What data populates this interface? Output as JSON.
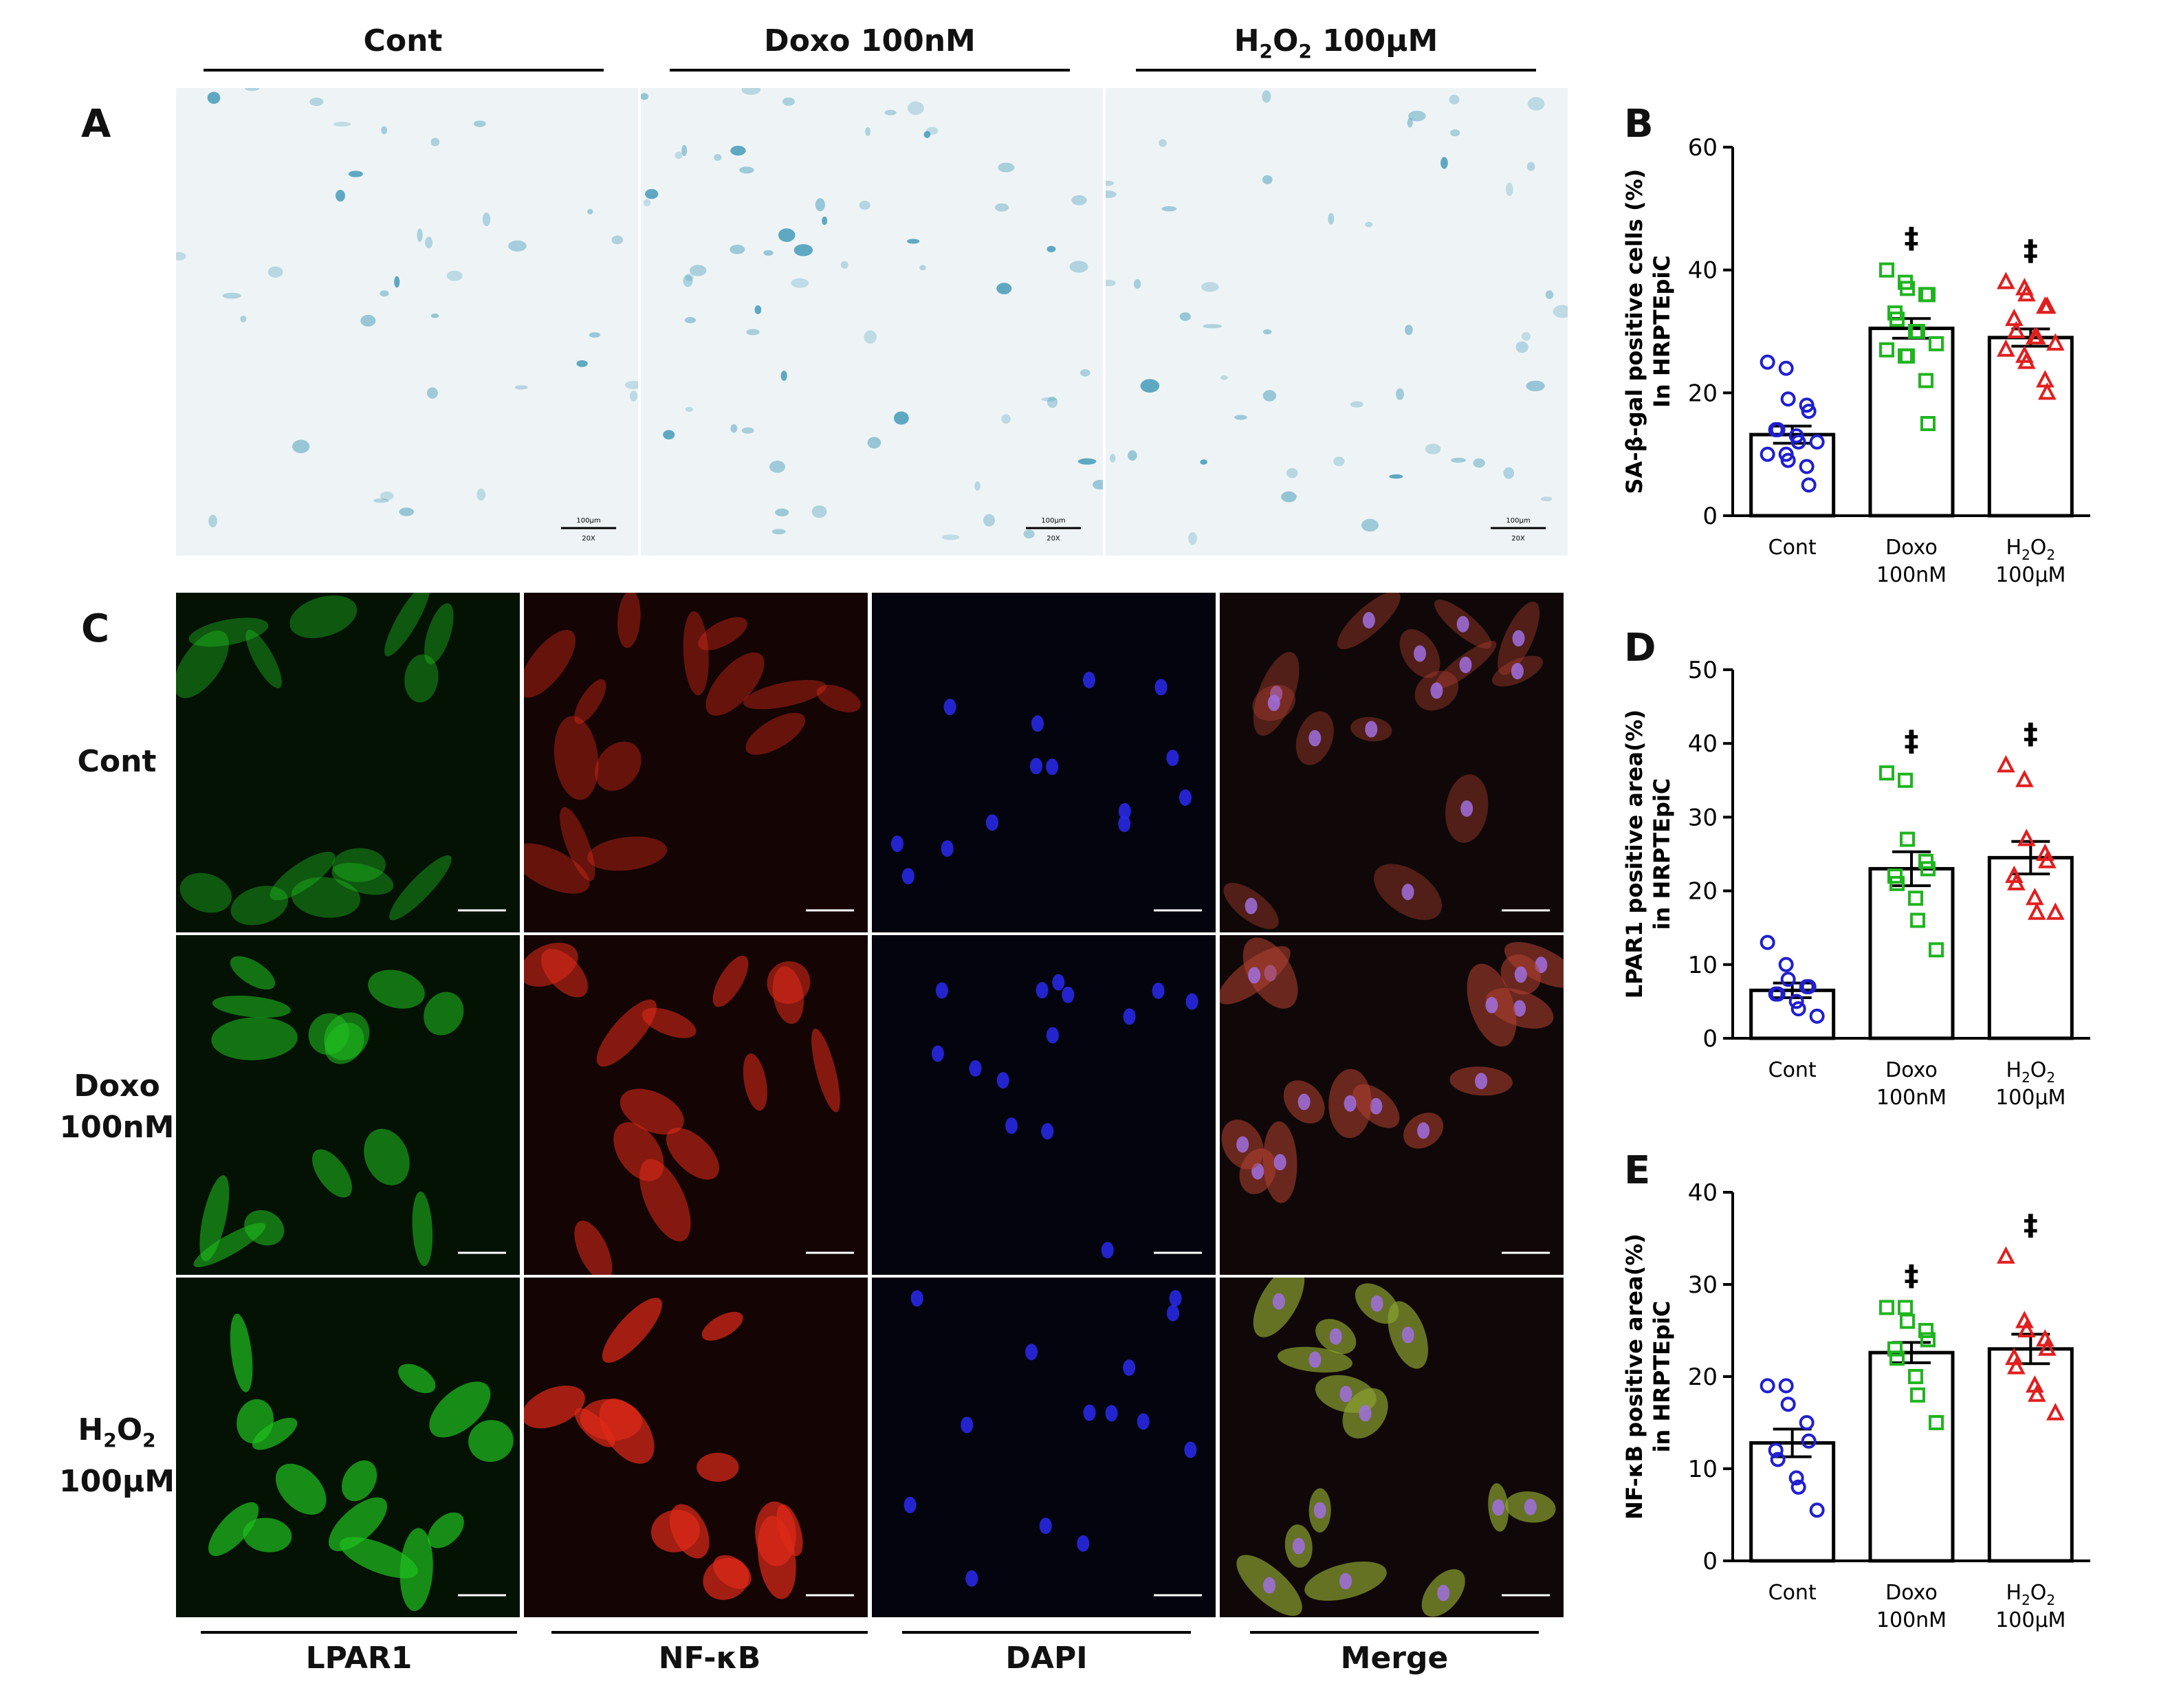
{
  "figure": {
    "panel_letters": {
      "A": "A",
      "B": "B",
      "C": "C",
      "D": "D",
      "E": "E"
    },
    "conditions": {
      "cont": "Cont",
      "doxo": "Doxo 100nM",
      "doxo_line1": "Doxo",
      "doxo_line2": "100nM",
      "h2o2_base": "H",
      "h2o2_sub": "2",
      "h2o2_mid": "O",
      "h2o2_sub2": "2",
      "h2o2_conc": "100μM"
    },
    "panel_A": {
      "scale_bar_label": "100μm",
      "magnification": "20X",
      "image_colors": {
        "background": "#eef4f6",
        "stain": "#2f8fb0"
      }
    },
    "panel_C": {
      "channels": [
        "LPAR1",
        "NF-κB",
        "DAPI",
        "Merge"
      ],
      "channel_colors": {
        "LPAR1": "#2fbf2f",
        "NF-κB": "#e02a18",
        "DAPI": "#2020e0",
        "Merge": "#8a5050"
      }
    },
    "significance_symbol": "‡"
  },
  "chart_data": [
    {
      "panel": "B",
      "type": "bar",
      "ylabel_line1": "SA-β-gal positive cells (%)",
      "ylabel_line2": "In HRPTEpiC",
      "ylim": [
        0,
        60
      ],
      "yticks": [
        0,
        20,
        40,
        60
      ],
      "categories": [
        "Cont",
        "Doxo 100nM",
        "H2O2 100μM"
      ],
      "means": [
        13.2,
        30.5,
        29.0
      ],
      "sem": [
        1.4,
        1.6,
        1.4
      ],
      "points": [
        [
          25,
          24,
          19,
          18,
          17,
          14,
          14,
          13,
          12,
          12,
          10,
          10,
          9,
          8,
          5
        ],
        [
          40,
          38,
          37,
          36,
          36,
          33,
          32,
          30,
          30,
          28,
          27,
          26,
          26,
          22,
          15
        ],
        [
          38,
          37,
          36,
          34,
          34,
          32,
          30,
          29,
          29,
          28,
          27,
          26,
          25,
          22,
          20
        ]
      ],
      "significant": [
        false,
        true,
        true
      ],
      "colors": [
        "#1f1fd0",
        "#1fb51f",
        "#e01f1f"
      ],
      "markers": [
        "circle",
        "square",
        "triangle"
      ]
    },
    {
      "panel": "D",
      "type": "bar",
      "ylabel_line1": "LPAR1 positive area(%)",
      "ylabel_line2": "in HRPTEpiC",
      "ylim": [
        0,
        50
      ],
      "yticks": [
        0,
        10,
        20,
        30,
        40,
        50
      ],
      "categories": [
        "Cont",
        "Doxo 100nM",
        "H2O2 100μM"
      ],
      "means": [
        6.5,
        23.0,
        24.5
      ],
      "sem": [
        1.0,
        2.3,
        2.2
      ],
      "points": [
        [
          13,
          10,
          8,
          7,
          7,
          6,
          6,
          5,
          4,
          3
        ],
        [
          36,
          35,
          27,
          24,
          23,
          22,
          21,
          19,
          16,
          12
        ],
        [
          37,
          35,
          27,
          25,
          24,
          22,
          21,
          19,
          17,
          17
        ]
      ],
      "significant": [
        false,
        true,
        true
      ],
      "colors": [
        "#1f1fd0",
        "#1fb51f",
        "#e01f1f"
      ],
      "markers": [
        "circle",
        "square",
        "triangle"
      ]
    },
    {
      "panel": "E",
      "type": "bar",
      "ylabel_line1": "NF-κB positive area(%)",
      "ylabel_line2": "in HRPTEpiC",
      "ylim": [
        0,
        40
      ],
      "yticks": [
        0,
        10,
        20,
        30,
        40
      ],
      "categories": [
        "Cont",
        "Doxo 100nM",
        "H2O2 100μM"
      ],
      "means": [
        12.8,
        22.6,
        23.0
      ],
      "sem": [
        1.5,
        1.1,
        1.6
      ],
      "points": [
        [
          19,
          19,
          17,
          15,
          13,
          12,
          11,
          9,
          8,
          5.5
        ],
        [
          27.5,
          27.5,
          26,
          25,
          24,
          23,
          22,
          20,
          18,
          15
        ],
        [
          33,
          26,
          25,
          24,
          23,
          22,
          21,
          19,
          18,
          16
        ]
      ],
      "significant": [
        false,
        true,
        true
      ],
      "colors": [
        "#1f1fd0",
        "#1fb51f",
        "#e01f1f"
      ],
      "markers": [
        "circle",
        "square",
        "triangle"
      ]
    }
  ]
}
